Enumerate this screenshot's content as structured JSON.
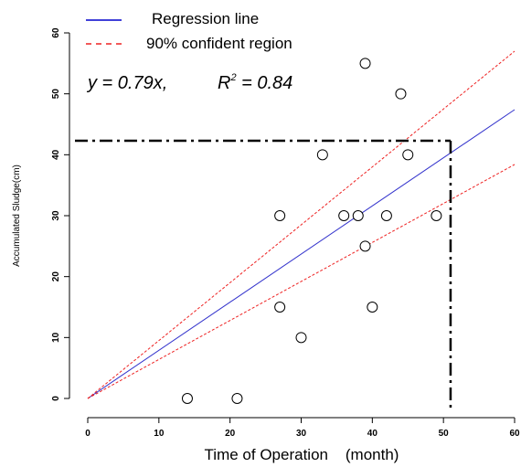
{
  "chart_data": {
    "type": "scatter",
    "xlabel": "Time of Operation    (month)",
    "ylabel": "Accumulated Sludge(cm)",
    "xlim": [
      0,
      60
    ],
    "ylim": [
      0,
      60
    ],
    "xticks": [
      0,
      10,
      20,
      30,
      40,
      50,
      60
    ],
    "yticks": [
      0,
      10,
      20,
      30,
      40,
      50,
      60
    ],
    "points": [
      {
        "x": 14,
        "y": 0
      },
      {
        "x": 21,
        "y": 0
      },
      {
        "x": 27,
        "y": 15
      },
      {
        "x": 27,
        "y": 30
      },
      {
        "x": 30,
        "y": 10
      },
      {
        "x": 33,
        "y": 40
      },
      {
        "x": 36,
        "y": 30
      },
      {
        "x": 38,
        "y": 30
      },
      {
        "x": 39,
        "y": 55
      },
      {
        "x": 39,
        "y": 25
      },
      {
        "x": 40,
        "y": 15
      },
      {
        "x": 42,
        "y": 30
      },
      {
        "x": 44,
        "y": 50
      },
      {
        "x": 45,
        "y": 40
      },
      {
        "x": 49,
        "y": 30
      }
    ],
    "regression": {
      "slope": 0.79,
      "color": "#3333cc"
    },
    "confidence": {
      "upper_slope": 0.95,
      "lower_slope": 0.64,
      "color": "#ee2222"
    },
    "reference_lines": {
      "y": 42.3,
      "x": 51
    },
    "legend": [
      {
        "label": "Regression line",
        "style": "solid",
        "color": "#0000cc"
      },
      {
        "label": "90% confident region",
        "style": "dashed",
        "color": "#ee2222"
      }
    ],
    "equation": {
      "lhs": "y = 0.79x,",
      "r_label": "R",
      "r_sup": "2",
      "r_rhs": " = 0.84"
    },
    "grid": false
  }
}
